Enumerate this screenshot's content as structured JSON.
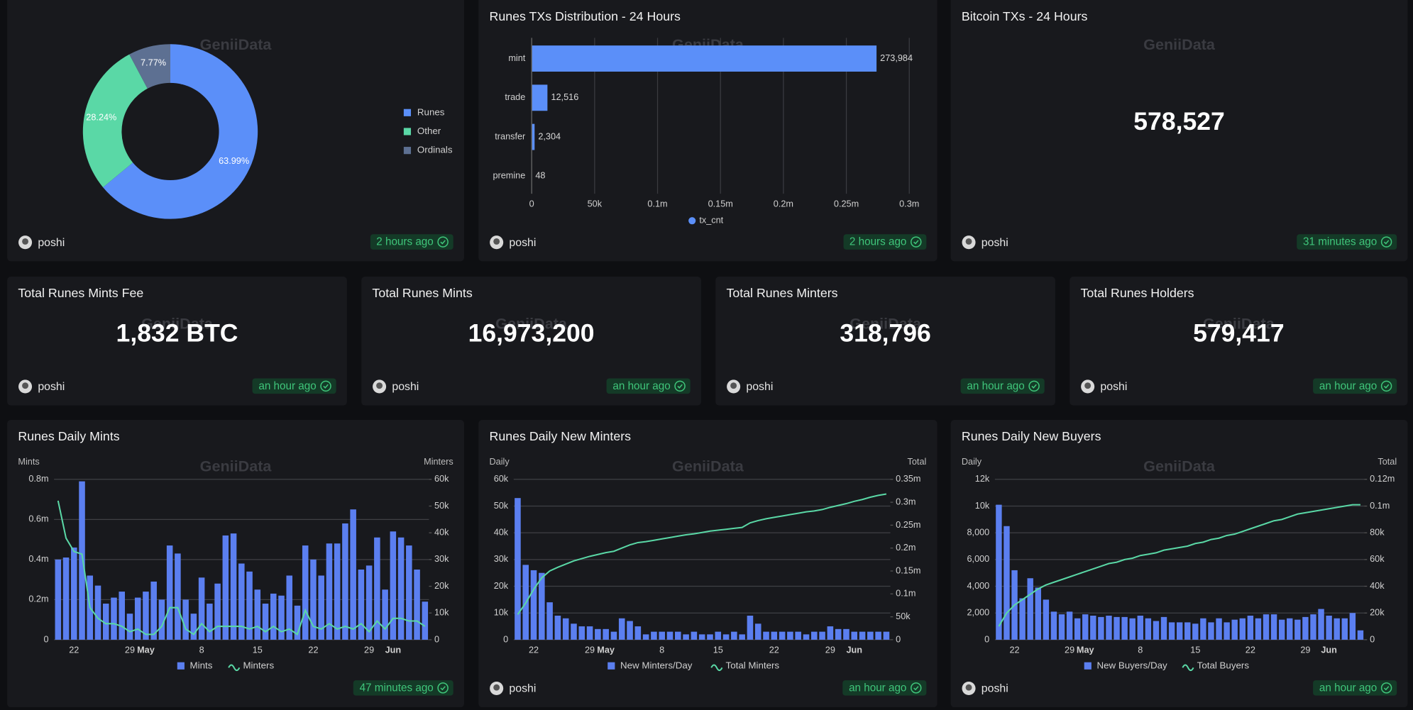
{
  "watermark": "GeniiData",
  "panels": [
    {
      "author": "poshi",
      "updated": "2 hours ago",
      "chart": {
        "type": "pie",
        "categories": [
          "Runes",
          "Other",
          "Ordinals"
        ],
        "values": [
          63.99,
          28.24,
          7.77
        ],
        "value_labels": [
          "63.99%",
          "28.24%",
          "7.77%"
        ],
        "colors": [
          "#5b8ff9",
          "#5ad8a6",
          "#5d7092"
        ]
      }
    },
    {
      "title": "Runes TXs Distribution - 24 Hours",
      "author": "poshi",
      "updated": "2 hours ago",
      "chart": {
        "type": "bar",
        "orientation": "horizontal",
        "categories": [
          "mint",
          "trade",
          "transfer",
          "premine"
        ],
        "series": [
          {
            "name": "tx_cnt",
            "color": "#5b8ff9",
            "values": [
              273984,
              12516,
              2304,
              48
            ],
            "value_labels": [
              "273,984",
              "12,516",
              "2,304",
              "48"
            ]
          }
        ],
        "xlim": [
          0,
          300000
        ],
        "xticks": [
          0,
          {
            "value": 50000,
            "label": "50k"
          },
          {
            "value": 100000,
            "label": "0.1m"
          },
          {
            "value": 150000,
            "label": "0.15m"
          },
          {
            "value": 200000,
            "label": "0.2m"
          },
          {
            "value": 250000,
            "label": "0.25m"
          },
          {
            "value": 300000,
            "label": "0.3m"
          }
        ],
        "grid": true
      }
    },
    {
      "title": "Bitcoin TXs - 24 Hours",
      "value": "578,527",
      "author": "poshi",
      "updated": "31 minutes ago"
    },
    {
      "title": "Total Runes Mints Fee",
      "value": "1,832 BTC",
      "author": "poshi",
      "updated": "an hour ago"
    },
    {
      "title": "Total Runes Mints",
      "value": "16,973,200",
      "author": "poshi",
      "updated": "an hour ago"
    },
    {
      "title": "Total Runes Minters",
      "value": "318,796",
      "author": "poshi",
      "updated": "an hour ago"
    },
    {
      "title": "Total Runes Holders",
      "value": "579,417",
      "author": "poshi",
      "updated": "an hour ago"
    },
    {
      "title": "Runes Daily Mints",
      "updated": "47 minutes ago",
      "chart": {
        "type": "combo",
        "y_label": "Mints",
        "y2_label": "Minters",
        "categories": [
          null,
          null,
          "22",
          null,
          null,
          null,
          null,
          null,
          null,
          "29",
          null,
          "May",
          null,
          null,
          null,
          null,
          null,
          null,
          "8",
          null,
          null,
          null,
          null,
          null,
          null,
          "15",
          null,
          null,
          null,
          null,
          null,
          null,
          "22",
          null,
          null,
          null,
          null,
          null,
          null,
          "29",
          null,
          null,
          "Jun",
          null,
          null,
          null,
          null
        ],
        "series": [
          {
            "name": "Mints",
            "type": "bar",
            "color": "#5b7ff0",
            "values": [
              400000,
              410000,
              460000,
              790000,
              320000,
              270000,
              180000,
              210000,
              240000,
              130000,
              210000,
              240000,
              290000,
              200000,
              470000,
              430000,
              200000,
              130000,
              310000,
              180000,
              280000,
              520000,
              530000,
              380000,
              340000,
              250000,
              180000,
              230000,
              220000,
              320000,
              170000,
              470000,
              400000,
              320000,
              480000,
              480000,
              580000,
              650000,
              350000,
              370000,
              510000,
              250000,
              540000,
              510000,
              470000,
              350000,
              190000
            ]
          },
          {
            "name": "Minters",
            "type": "line",
            "axis": "y2",
            "color": "#5ad8a6",
            "values": [
              52000,
              38000,
              33000,
              32000,
              12000,
              8000,
              6000,
              6000,
              5000,
              3000,
              4000,
              2000,
              2000,
              5000,
              12000,
              12000,
              4000,
              2000,
              6000,
              3000,
              5000,
              5000,
              5000,
              5000,
              4000,
              5000,
              3000,
              5000,
              3000,
              4000,
              2000,
              11000,
              5000,
              4000,
              6000,
              4000,
              5000,
              4000,
              6000,
              3000,
              7000,
              4000,
              8000,
              8000,
              7000,
              7000,
              5000
            ]
          }
        ],
        "ylim": [
          0,
          800000
        ],
        "yticks": [
          0,
          {
            "value": 200000,
            "label": "0.2m"
          },
          {
            "value": 400000,
            "label": "0.4m"
          },
          {
            "value": 600000,
            "label": "0.6m"
          },
          {
            "value": 800000,
            "label": "0.8m"
          }
        ],
        "y2lim": [
          0,
          60000
        ],
        "y2ticks": [
          0,
          {
            "value": 10000,
            "label": "10k"
          },
          {
            "value": 20000,
            "label": "20k"
          },
          {
            "value": 30000,
            "label": "30k"
          },
          {
            "value": 40000,
            "label": "40k"
          },
          {
            "value": 50000,
            "label": "50k"
          },
          {
            "value": 60000,
            "label": "60k"
          }
        ],
        "grid": true
      }
    },
    {
      "title": "Runes Daily New Minters",
      "author": "poshi",
      "updated": "an hour ago",
      "chart": {
        "type": "combo",
        "y_label": "Daily",
        "y2_label": "Total",
        "categories": [
          null,
          null,
          "22",
          null,
          null,
          null,
          null,
          null,
          null,
          "29",
          null,
          "May",
          null,
          null,
          null,
          null,
          null,
          null,
          "8",
          null,
          null,
          null,
          null,
          null,
          null,
          "15",
          null,
          null,
          null,
          null,
          null,
          null,
          "22",
          null,
          null,
          null,
          null,
          null,
          null,
          "29",
          null,
          null,
          "Jun",
          null,
          null,
          null,
          null
        ],
        "series": [
          {
            "name": "New Minters/Day",
            "type": "bar",
            "color": "#5b7ff0",
            "values": [
              53000,
              28000,
              26000,
              25000,
              14000,
              9000,
              8000,
              6000,
              5000,
              5000,
              4000,
              4000,
              3000,
              8000,
              7000,
              5000,
              2000,
              3000,
              3000,
              3000,
              3000,
              2000,
              3000,
              2000,
              2000,
              3000,
              2000,
              3000,
              2000,
              9000,
              6000,
              3000,
              3000,
              3000,
              3000,
              3000,
              2000,
              3000,
              3000,
              5000,
              4000,
              4000,
              3000,
              3000,
              3000,
              3000,
              3000
            ]
          },
          {
            "name": "Total Minters",
            "type": "line",
            "axis": "y2",
            "color": "#5ad8a6",
            "values": [
              55000,
              80000,
              110000,
              135000,
              150000,
              158000,
              165000,
              172000,
              177000,
              182000,
              186000,
              190000,
              193000,
              200000,
              207000,
              212000,
              214000,
              217000,
              220000,
              223000,
              226000,
              229000,
              231000,
              234000,
              237000,
              239000,
              241000,
              243000,
              245000,
              255000,
              260000,
              264000,
              267000,
              270000,
              273000,
              276000,
              279000,
              281000,
              284000,
              289000,
              293000,
              297000,
              302000,
              306000,
              311000,
              315000,
              318000
            ]
          }
        ],
        "ylim": [
          0,
          60000
        ],
        "yticks": [
          0,
          {
            "value": 10000,
            "label": "10k"
          },
          {
            "value": 20000,
            "label": "20k"
          },
          {
            "value": 30000,
            "label": "30k"
          },
          {
            "value": 40000,
            "label": "40k"
          },
          {
            "value": 50000,
            "label": "50k"
          },
          {
            "value": 60000,
            "label": "60k"
          }
        ],
        "y2lim": [
          0,
          350000
        ],
        "y2ticks": [
          0,
          {
            "value": 50000,
            "label": "50k"
          },
          {
            "value": 100000,
            "label": "0.1m"
          },
          {
            "value": 150000,
            "label": "0.15m"
          },
          {
            "value": 200000,
            "label": "0.2m"
          },
          {
            "value": 250000,
            "label": "0.25m"
          },
          {
            "value": 300000,
            "label": "0.3m"
          },
          {
            "value": 350000,
            "label": "0.35m"
          }
        ],
        "grid": true
      }
    },
    {
      "title": "Runes Daily New Buyers",
      "author": "poshi",
      "updated": "an hour ago",
      "chart": {
        "type": "combo",
        "y_label": "Daily",
        "y2_label": "Total",
        "categories": [
          null,
          null,
          "22",
          null,
          null,
          null,
          null,
          null,
          null,
          "29",
          null,
          "May",
          null,
          null,
          null,
          null,
          null,
          null,
          "8",
          null,
          null,
          null,
          null,
          null,
          null,
          "15",
          null,
          null,
          null,
          null,
          null,
          null,
          "22",
          null,
          null,
          null,
          null,
          null,
          null,
          "29",
          null,
          null,
          "Jun",
          null,
          null,
          null,
          null
        ],
        "series": [
          {
            "name": "New Buyers/Day",
            "type": "bar",
            "color": "#5b7ff0",
            "values": [
              10100,
              8500,
              5200,
              3100,
              4600,
              3900,
              3000,
              2100,
              1900,
              2100,
              1600,
              1900,
              1800,
              1700,
              1800,
              1700,
              1700,
              1600,
              1800,
              1600,
              1400,
              1700,
              1300,
              1300,
              1300,
              1200,
              1600,
              1300,
              1600,
              1300,
              1500,
              1600,
              1800,
              1600,
              1900,
              1900,
              1500,
              1600,
              1500,
              1700,
              1900,
              2300,
              1800,
              1600,
              1600,
              2000,
              700
            ]
          },
          {
            "name": "Total Buyers",
            "type": "line",
            "axis": "y2",
            "color": "#5ad8a6",
            "values": [
              10000,
              20000,
              26000,
              30000,
              34000,
              38000,
              41000,
              43000,
              45000,
              47000,
              49000,
              51000,
              53000,
              55000,
              57000,
              58000,
              60000,
              61000,
              63000,
              64000,
              65000,
              67000,
              68000,
              69000,
              70000,
              72000,
              73000,
              75000,
              76000,
              78000,
              79000,
              81000,
              83000,
              85000,
              87000,
              89000,
              90000,
              92000,
              94000,
              95000,
              96000,
              97000,
              98000,
              99000,
              100000,
              101000,
              101000
            ]
          }
        ],
        "ylim": [
          0,
          12000
        ],
        "yticks": [
          0,
          {
            "value": 2000,
            "label": "2,000"
          },
          {
            "value": 4000,
            "label": "4,000"
          },
          {
            "value": 6000,
            "label": "6,000"
          },
          {
            "value": 8000,
            "label": "8,000"
          },
          {
            "value": 10000,
            "label": "10k"
          },
          {
            "value": 12000,
            "label": "12k"
          }
        ],
        "y2lim": [
          0,
          120000
        ],
        "y2ticks": [
          0,
          {
            "value": 20000,
            "label": "20k"
          },
          {
            "value": 40000,
            "label": "40k"
          },
          {
            "value": 60000,
            "label": "60k"
          },
          {
            "value": 80000,
            "label": "80k"
          },
          {
            "value": 100000,
            "label": "0.1m"
          },
          {
            "value": 120000,
            "label": "0.12m"
          }
        ],
        "grid": true
      }
    }
  ]
}
